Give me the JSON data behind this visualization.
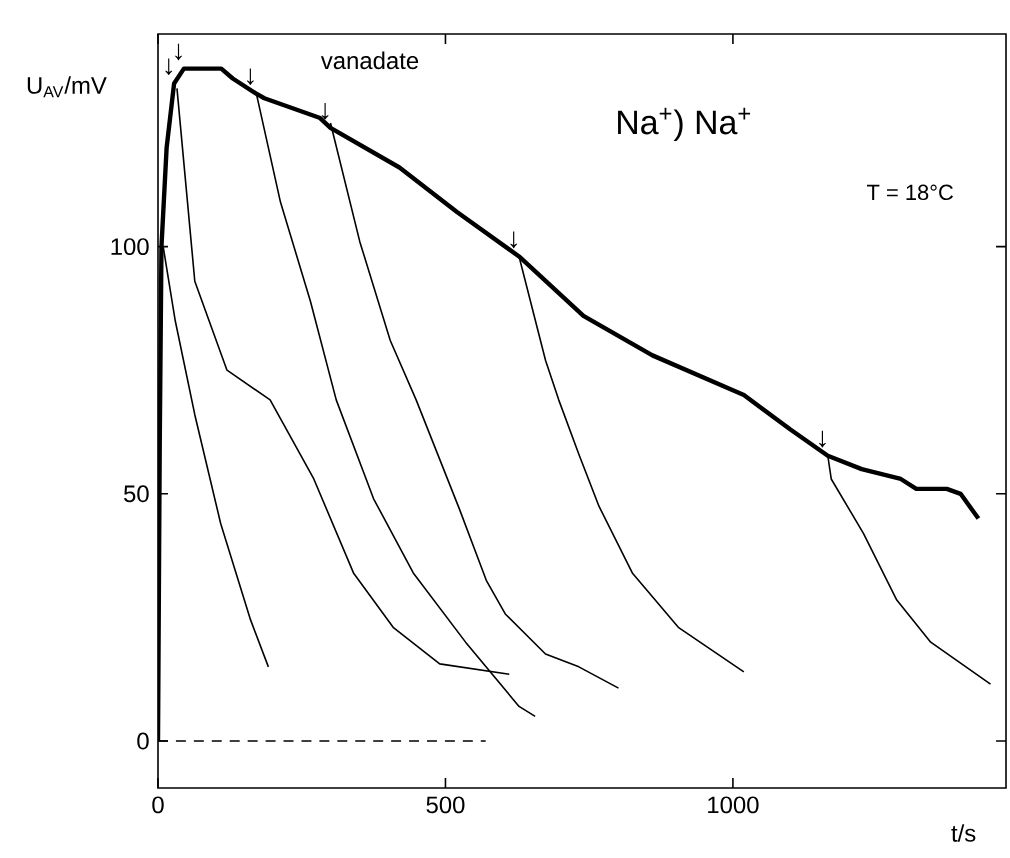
{
  "chart_data": {
    "type": "line",
    "xlabel": "t/s",
    "ylabel": "U$_{AV}$/mV",
    "xlim": [
      0,
      1475
    ],
    "ylim": [
      -9.5,
      143
    ],
    "xticks": [
      0,
      500,
      1000
    ],
    "yticks": [
      0,
      50,
      100
    ],
    "grid": false,
    "series": [
      {
        "color": "#000000",
        "x": [
          0,
          3,
          6,
          15,
          28,
          45,
          80,
          110,
          130,
          170,
          185,
          282,
          300,
          420,
          520,
          628,
          740,
          860,
          1019,
          1100,
          1165,
          1224,
          1292,
          1319,
          1372,
          1396,
          1427
        ],
        "values": [
          0,
          60,
          100,
          120,
          133,
          136,
          136,
          136,
          134,
          131,
          130,
          126,
          124,
          116,
          107,
          98,
          86,
          78,
          70,
          63,
          57.7,
          55,
          53,
          51,
          51,
          50,
          45
        ]
      },
      {
        "color": "#000000",
        "x": [
          9,
          30,
          64,
          109,
          161,
          192
        ],
        "values": [
          100,
          85,
          66,
          44,
          24.5,
          15
        ]
      },
      {
        "color": "#000000",
        "x": [
          33,
          64,
          120,
          195,
          271,
          340,
          409,
          490,
          611
        ],
        "values": [
          132,
          93,
          75,
          69,
          53,
          34,
          23,
          15.6,
          13.5
        ]
      },
      {
        "color": "#000000",
        "x": [
          171,
          213,
          265,
          310,
          375,
          444,
          535,
          628,
          656
        ],
        "values": [
          131,
          109,
          89,
          69,
          49,
          34,
          20,
          7,
          5
        ]
      },
      {
        "color": "#000000",
        "x": [
          300,
          351,
          404,
          449,
          524,
          571,
          604,
          674,
          732,
          801
        ],
        "values": [
          125,
          101,
          81,
          69,
          47,
          32.5,
          25.7,
          17.6,
          15,
          10.7
        ]
      },
      {
        "color": "#000000",
        "x": [
          628,
          674,
          697,
          732,
          767,
          825,
          905,
          1019
        ],
        "values": [
          98,
          77,
          69,
          58,
          47.5,
          34,
          23,
          14
        ]
      },
      {
        "color": "#000000",
        "x": [
          1165,
          1171,
          1227,
          1285,
          1344,
          1448
        ],
        "values": [
          57.7,
          53,
          42,
          28.5,
          20,
          11.5
        ]
      },
      {
        "color": "#000000",
        "line_style": "dashed",
        "x": [
          0,
          570
        ],
        "values": [
          0,
          0
        ]
      }
    ],
    "annotations": [
      {
        "text": "↓",
        "x": 28,
        "y": 133
      },
      {
        "text": "↓",
        "x": 45,
        "y": 136
      },
      {
        "text": "↓",
        "x": 170,
        "y": 131
      },
      {
        "text": "↓",
        "x": 300,
        "y": 124
      },
      {
        "text": "↓",
        "x": 628,
        "y": 98
      },
      {
        "text": "↓",
        "x": 1165,
        "y": 57.7
      },
      "vanadate",
      "Na$^{+}$) Na$^{+}$",
      "T = 18°C"
    ]
  }
}
